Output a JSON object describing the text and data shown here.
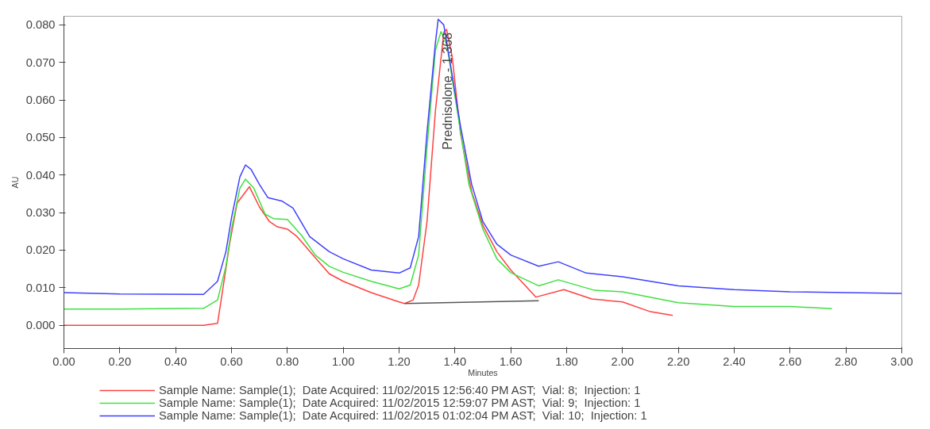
{
  "chart_data": {
    "type": "line",
    "xlabel": "Minutes",
    "ylabel": "AU",
    "xlim": [
      0,
      3
    ],
    "ylim": [
      -0.0062,
      0.0823
    ],
    "xticks": [
      {
        "value": 0,
        "label": "0.00"
      },
      {
        "value": 0.2,
        "label": "0.20"
      },
      {
        "value": 0.4,
        "label": "0.40"
      },
      {
        "value": 0.6,
        "label": "0.60"
      },
      {
        "value": 0.8,
        "label": "0.80"
      },
      {
        "value": 1.0,
        "label": "1.00"
      },
      {
        "value": 1.2,
        "label": "1.20"
      },
      {
        "value": 1.4,
        "label": "1.40"
      },
      {
        "value": 1.6,
        "label": "1.60"
      },
      {
        "value": 1.8,
        "label": "1.80"
      },
      {
        "value": 2.0,
        "label": "2.00"
      },
      {
        "value": 2.2,
        "label": "2.20"
      },
      {
        "value": 2.4,
        "label": "2.40"
      },
      {
        "value": 2.6,
        "label": "2.60"
      },
      {
        "value": 2.8,
        "label": "2.80"
      },
      {
        "value": 3.0,
        "label": "3.00"
      }
    ],
    "yticks": [
      {
        "value": 0,
        "label": "0.000"
      },
      {
        "value": 0.01,
        "label": "0.010"
      },
      {
        "value": 0.02,
        "label": "0.020"
      },
      {
        "value": 0.03,
        "label": "0.030"
      },
      {
        "value": 0.04,
        "label": "0.040"
      },
      {
        "value": 0.05,
        "label": "0.050"
      },
      {
        "value": 0.06,
        "label": "0.060"
      },
      {
        "value": 0.07,
        "label": "0.070"
      },
      {
        "value": 0.08,
        "label": "0.080"
      }
    ],
    "grid": false,
    "legend": "bottom",
    "line_style": "solid",
    "annotations": [
      {
        "text": "Prednisolone - 1.368",
        "x": 1.368,
        "y": 0.0788
      }
    ],
    "series": [
      {
        "name": "Sample Name: Sample(1);  Date Acquired: 11/02/2015 12:56:40 PM AST;  Vial: 8;  Injection: 1",
        "color": "#ff4040",
        "x": [
          0,
          0.2,
          0.5,
          0.55,
          0.565,
          0.593,
          0.62,
          0.664,
          0.7,
          0.736,
          0.764,
          0.8,
          0.835,
          0.9,
          0.95,
          1.0,
          1.1,
          1.2,
          1.22,
          1.25,
          1.27,
          1.3,
          1.33,
          1.36,
          1.37,
          1.39,
          1.42,
          1.46,
          1.5,
          1.55,
          1.6,
          1.65,
          1.69,
          1.79,
          1.89,
          2.0,
          2.1,
          2.18
        ],
        "values": [
          0,
          0,
          0,
          0.0005,
          0.0077,
          0.0216,
          0.0325,
          0.0369,
          0.0315,
          0.0276,
          0.0262,
          0.0256,
          0.0236,
          0.018,
          0.0137,
          0.0117,
          0.0087,
          0.0062,
          0.0058,
          0.0067,
          0.0107,
          0.0276,
          0.057,
          0.078,
          0.0788,
          0.0716,
          0.051,
          0.0355,
          0.0266,
          0.0196,
          0.0147,
          0.0107,
          0.0075,
          0.0095,
          0.007,
          0.0062,
          0.0036,
          0.0026
        ]
      },
      {
        "name": "Sample Name: Sample(1);  Date Acquired: 11/02/2015 12:59:07 PM AST;  Vial: 9;  Injection: 1",
        "color": "#40e040",
        "x": [
          0,
          0.2,
          0.5,
          0.55,
          0.58,
          0.6,
          0.63,
          0.65,
          0.68,
          0.72,
          0.75,
          0.8,
          0.85,
          0.9,
          0.95,
          1.0,
          1.1,
          1.2,
          1.24,
          1.27,
          1.3,
          1.33,
          1.35,
          1.37,
          1.4,
          1.45,
          1.5,
          1.55,
          1.6,
          1.7,
          1.77,
          1.9,
          2.0,
          2.2,
          2.4,
          2.6,
          2.75
        ],
        "values": [
          0.0043,
          0.0043,
          0.0045,
          0.0067,
          0.0157,
          0.0256,
          0.0365,
          0.0389,
          0.0365,
          0.0296,
          0.0284,
          0.0282,
          0.024,
          0.0187,
          0.0157,
          0.0141,
          0.0117,
          0.0097,
          0.0107,
          0.0187,
          0.0474,
          0.0732,
          0.0782,
          0.0752,
          0.061,
          0.0375,
          0.0256,
          0.0177,
          0.014,
          0.0105,
          0.0121,
          0.0093,
          0.0089,
          0.006,
          0.005,
          0.005,
          0.0044
        ]
      },
      {
        "name": "Sample Name: Sample(1);  Date Acquired: 11/02/2015 01:02:04 PM AST;  Vial: 10;  Injection: 1",
        "color": "#4040ff",
        "x": [
          0,
          0.2,
          0.5,
          0.55,
          0.58,
          0.6,
          0.63,
          0.65,
          0.67,
          0.7,
          0.73,
          0.78,
          0.82,
          0.88,
          0.95,
          1.0,
          1.1,
          1.2,
          1.24,
          1.27,
          1.3,
          1.33,
          1.34,
          1.36,
          1.38,
          1.42,
          1.46,
          1.5,
          1.55,
          1.6,
          1.7,
          1.77,
          1.87,
          2.0,
          2.2,
          2.4,
          2.6,
          2.8,
          3.0
        ],
        "values": [
          0.0087,
          0.0083,
          0.0082,
          0.0117,
          0.0196,
          0.0286,
          0.0395,
          0.0427,
          0.0415,
          0.0375,
          0.034,
          0.0331,
          0.0312,
          0.0236,
          0.0196,
          0.0177,
          0.0147,
          0.0139,
          0.0153,
          0.0236,
          0.0514,
          0.0752,
          0.0815,
          0.08,
          0.0712,
          0.053,
          0.0375,
          0.0276,
          0.0216,
          0.0187,
          0.0157,
          0.0169,
          0.0139,
          0.0129,
          0.0105,
          0.0095,
          0.0089,
          0.0087,
          0.0085
        ]
      },
      {
        "color": "#555555",
        "x": [
          1.22,
          1.7
        ],
        "values": [
          0.0058,
          0.0065
        ]
      }
    ]
  }
}
